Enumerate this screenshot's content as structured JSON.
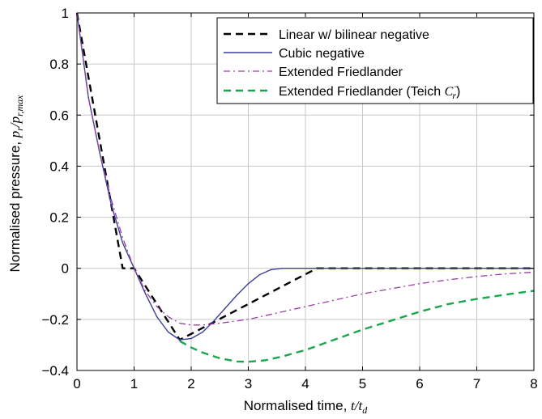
{
  "chart_data": {
    "type": "line",
    "xlabel_text": "Normalised time, ",
    "xlabel_math": "t/t",
    "xlabel_sub": "d",
    "ylabel_text": "Normalised pressure, ",
    "ylabel_math": "p",
    "ylabel_sub1": "r",
    "ylabel_sep": "/p",
    "ylabel_sub2": "r,max",
    "xlim": [
      0,
      8
    ],
    "ylim": [
      -0.4,
      1
    ],
    "xticks": [
      0,
      1,
      2,
      3,
      4,
      5,
      6,
      7,
      8
    ],
    "yticks": [
      -0.4,
      -0.2,
      0,
      0.2,
      0.4,
      0.6,
      0.8,
      1
    ],
    "ytick_labels": [
      "−0.4",
      "−0.2",
      "0",
      "0.2",
      "0.4",
      "0.6",
      "0.8",
      "1"
    ],
    "grid": true,
    "legend_position": "top-right",
    "series": [
      {
        "name": "Linear w/ bilinear negative",
        "color": "#000000",
        "style": "dashed",
        "x": [
          0,
          0.8,
          1.0,
          1.8,
          4.2,
          8
        ],
        "y": [
          1,
          0,
          0,
          -0.28,
          0,
          0
        ]
      },
      {
        "name": "Cubic negative",
        "color": "#3b3f98",
        "style": "solid",
        "x": [
          0,
          0.2,
          0.4,
          0.6,
          0.8,
          1.0,
          1.2,
          1.4,
          1.6,
          1.8,
          2.0,
          2.2,
          2.4,
          2.6,
          2.8,
          3.0,
          3.2,
          3.4,
          3.6,
          3.8,
          4.0,
          8
        ],
        "y": [
          1,
          0.67,
          0.45,
          0.25,
          0.1,
          0,
          -0.1,
          -0.19,
          -0.25,
          -0.28,
          -0.275,
          -0.25,
          -0.205,
          -0.155,
          -0.105,
          -0.06,
          -0.025,
          -0.005,
          0,
          0,
          0,
          0
        ]
      },
      {
        "name": "Extended Friedlander",
        "color": "#9b3fa8",
        "style": "dashdot",
        "x": [
          0,
          0.2,
          0.4,
          0.6,
          0.8,
          1.0,
          1.2,
          1.4,
          1.6,
          1.8,
          2.0,
          2.2,
          2.5,
          3.0,
          3.5,
          4.0,
          4.5,
          5.0,
          5.5,
          6.0,
          6.5,
          7.0,
          7.5,
          8.0
        ],
        "y": [
          1,
          0.67,
          0.45,
          0.27,
          0.12,
          0,
          -0.09,
          -0.15,
          -0.19,
          -0.215,
          -0.222,
          -0.222,
          -0.215,
          -0.2,
          -0.175,
          -0.15,
          -0.125,
          -0.1,
          -0.08,
          -0.06,
          -0.045,
          -0.032,
          -0.022,
          -0.015
        ]
      },
      {
        "name": "Extended Friedlander (Teich ",
        "name_math": "C",
        "name_sup": "−",
        "name_sub": "r",
        "name_tail": ")",
        "color": "#1aa64a",
        "style": "dashed",
        "x": [
          1.8,
          2.0,
          2.2,
          2.5,
          2.8,
          3.0,
          3.3,
          3.6,
          4.0,
          4.5,
          5.0,
          5.5,
          6.0,
          6.5,
          7.0,
          7.5,
          8.0
        ],
        "y": [
          -0.285,
          -0.31,
          -0.33,
          -0.352,
          -0.365,
          -0.366,
          -0.36,
          -0.345,
          -0.32,
          -0.28,
          -0.24,
          -0.205,
          -0.17,
          -0.14,
          -0.12,
          -0.103,
          -0.088
        ]
      }
    ]
  }
}
